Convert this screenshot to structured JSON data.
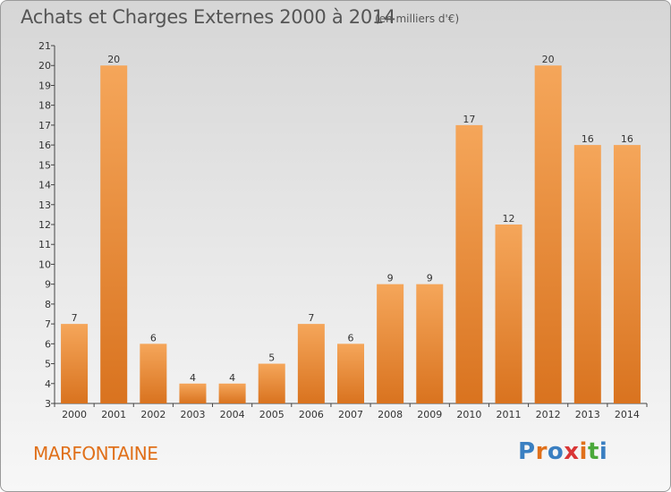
{
  "header": {
    "title": "Achats et Charges Externes 2000 à 2014",
    "subtitle": "(en milliers d'€)"
  },
  "footer": {
    "commune": "MARFONTAINE",
    "brand": "Proxiti",
    "brand_colors": [
      "#3a7fc1",
      "#e0701a",
      "#3a7fc1",
      "#d93636",
      "#e0701a",
      "#4aa83a",
      "#3a7fc1"
    ]
  },
  "colors": {
    "bar_light": "#f5a65a",
    "bar_dark": "#d9731f",
    "axis": "#444444",
    "background_top": "#d6d6d6",
    "background_bottom": "#f7f7f7"
  },
  "chart_data": {
    "type": "bar",
    "title": "Achats et Charges Externes 2000 à 2014",
    "subtitle": "(en milliers d'€)",
    "categories": [
      "2000",
      "2001",
      "2002",
      "2003",
      "2004",
      "2005",
      "2006",
      "2007",
      "2008",
      "2009",
      "2010",
      "2011",
      "2012",
      "2013",
      "2014"
    ],
    "values": [
      7,
      20,
      6,
      4,
      4,
      5,
      7,
      6,
      9,
      9,
      17,
      12,
      20,
      16,
      16
    ],
    "ylim": [
      3,
      21
    ],
    "yticks": [
      3,
      4,
      5,
      6,
      7,
      8,
      9,
      10,
      11,
      12,
      13,
      14,
      15,
      16,
      17,
      18,
      19,
      20,
      21
    ],
    "grid": false,
    "xlabel": "",
    "ylabel": ""
  }
}
